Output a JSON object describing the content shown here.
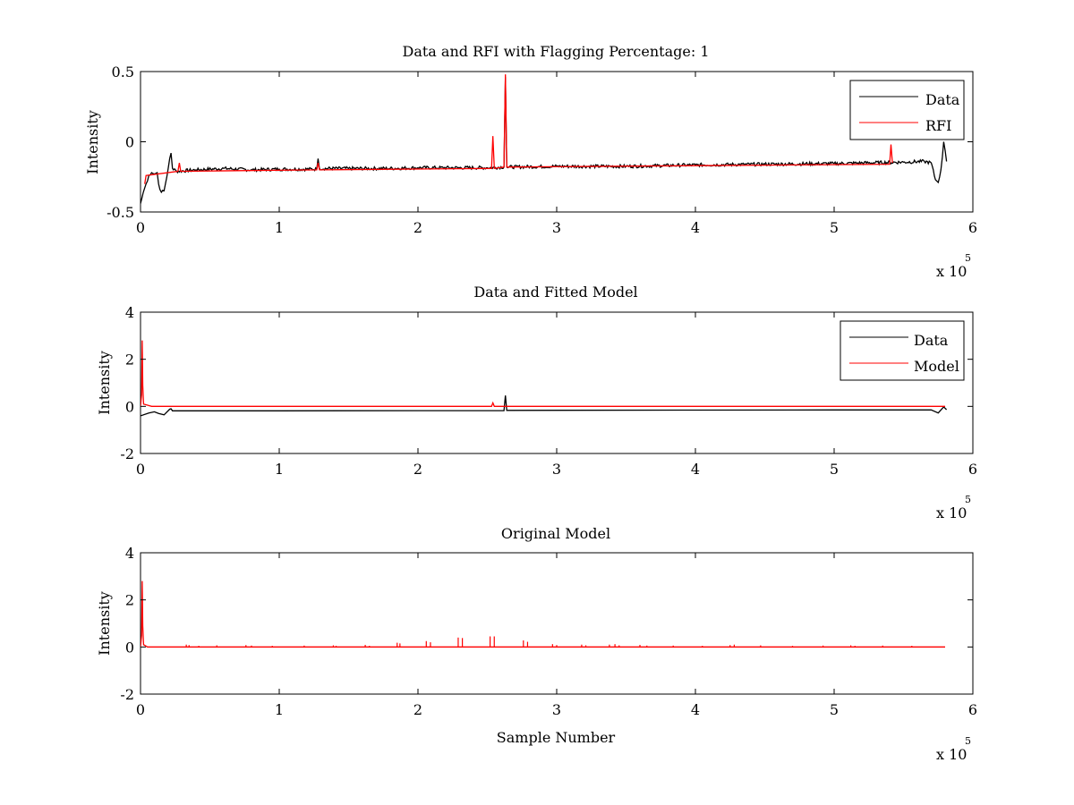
{
  "chart_data": [
    {
      "type": "line",
      "title": "Data and RFI with Flagging Percentage: 1",
      "xlabel": "",
      "ylabel": "Intensity",
      "xlim": [
        0,
        600000
      ],
      "ylim": [
        -0.5,
        0.5
      ],
      "x_ticks": [
        "0",
        "1",
        "2",
        "3",
        "4",
        "5",
        "6"
      ],
      "y_ticks": [
        "0.5",
        "0",
        "-0.5"
      ],
      "x_exponent_label": "x 10",
      "x_exponent_power": "5",
      "legend": {
        "position": "top-right",
        "entries": [
          "Data",
          "RFI"
        ]
      },
      "grid": false,
      "series": [
        {
          "name": "Data",
          "color": "#000000",
          "points": [
            [
              0,
              -0.44
            ],
            [
              2000,
              -0.36
            ],
            [
              4000,
              -0.3
            ],
            [
              6000,
              -0.24
            ],
            [
              8000,
              -0.22
            ],
            [
              10000,
              -0.23
            ],
            [
              12000,
              -0.22
            ],
            [
              13000,
              -0.3
            ],
            [
              15000,
              -0.36
            ],
            [
              17000,
              -0.35
            ],
            [
              19000,
              -0.25
            ],
            [
              21000,
              -0.12
            ],
            [
              22000,
              -0.08
            ],
            [
              23000,
              -0.19
            ],
            [
              26000,
              -0.21
            ],
            [
              40000,
              -0.2
            ],
            [
              60000,
              -0.19
            ],
            [
              80000,
              -0.2
            ],
            [
              100000,
              -0.195
            ],
            [
              127000,
              -0.195
            ],
            [
              128000,
              -0.12
            ],
            [
              129000,
              -0.19
            ],
            [
              150000,
              -0.19
            ],
            [
              180000,
              -0.19
            ],
            [
              200000,
              -0.185
            ],
            [
              230000,
              -0.185
            ],
            [
              250000,
              -0.185
            ],
            [
              262000,
              -0.18
            ],
            [
              263000,
              0.46
            ],
            [
              264000,
              -0.18
            ],
            [
              300000,
              -0.175
            ],
            [
              350000,
              -0.175
            ],
            [
              400000,
              -0.165
            ],
            [
              450000,
              -0.16
            ],
            [
              500000,
              -0.155
            ],
            [
              550000,
              -0.145
            ],
            [
              565000,
              -0.14
            ],
            [
              570000,
              -0.15
            ],
            [
              573000,
              -0.27
            ],
            [
              575000,
              -0.29
            ],
            [
              577000,
              -0.2
            ],
            [
              579000,
              0.0
            ],
            [
              581000,
              -0.14
            ]
          ],
          "noise": 0.012
        },
        {
          "name": "RFI",
          "color": "#ff0000",
          "points": [
            [
              3000,
              -0.3
            ],
            [
              4000,
              -0.24
            ],
            [
              27000,
              -0.21
            ],
            [
              28000,
              -0.15
            ],
            [
              29000,
              -0.21
            ],
            [
              127000,
              -0.2
            ],
            [
              128000,
              -0.15
            ],
            [
              129000,
              -0.2
            ],
            [
              253000,
              -0.19
            ],
            [
              254000,
              0.04
            ],
            [
              255000,
              -0.19
            ],
            [
              262000,
              -0.18
            ],
            [
              263000,
              0.48
            ],
            [
              264000,
              -0.18
            ],
            [
              540000,
              -0.16
            ],
            [
              541000,
              -0.02
            ],
            [
              542000,
              -0.15
            ]
          ]
        }
      ]
    },
    {
      "type": "line",
      "title": "Data and Fitted Model",
      "xlabel": "",
      "ylabel": "Intensity",
      "xlim": [
        0,
        600000
      ],
      "ylim": [
        -2,
        4
      ],
      "x_ticks": [
        "0",
        "1",
        "2",
        "3",
        "4",
        "5",
        "6"
      ],
      "y_ticks": [
        "4",
        "2",
        "0",
        "-2"
      ],
      "x_exponent_label": "x 10",
      "x_exponent_power": "5",
      "legend": {
        "position": "top-right",
        "entries": [
          "Data",
          "Model"
        ]
      },
      "grid": false,
      "series": [
        {
          "name": "Data",
          "color": "#000000",
          "points": [
            [
              0,
              -0.4
            ],
            [
              6000,
              -0.28
            ],
            [
              10000,
              -0.23
            ],
            [
              13000,
              -0.3
            ],
            [
              17000,
              -0.36
            ],
            [
              21000,
              -0.12
            ],
            [
              22000,
              -0.1
            ],
            [
              23000,
              -0.19
            ],
            [
              100000,
              -0.19
            ],
            [
              200000,
              -0.18
            ],
            [
              262000,
              -0.18
            ],
            [
              263000,
              0.46
            ],
            [
              264000,
              -0.17
            ],
            [
              400000,
              -0.16
            ],
            [
              500000,
              -0.15
            ],
            [
              570000,
              -0.15
            ],
            [
              575000,
              -0.28
            ],
            [
              579000,
              -0.02
            ],
            [
              581000,
              -0.14
            ]
          ]
        },
        {
          "name": "Model",
          "color": "#ff0000",
          "points": [
            [
              0,
              0
            ],
            [
              800,
              0.5
            ],
            [
              1200,
              2.8
            ],
            [
              1600,
              0.9
            ],
            [
              2200,
              0.1
            ],
            [
              5000,
              0.05
            ],
            [
              8000,
              0
            ],
            [
              253000,
              0
            ],
            [
              254000,
              0.15
            ],
            [
              255000,
              0
            ],
            [
              580000,
              0
            ]
          ]
        }
      ]
    },
    {
      "type": "line",
      "title": "Original Model",
      "xlabel": "Sample Number",
      "ylabel": "Intensity",
      "xlim": [
        0,
        600000
      ],
      "ylim": [
        -2,
        4
      ],
      "x_ticks": [
        "0",
        "1",
        "2",
        "3",
        "4",
        "5",
        "6"
      ],
      "y_ticks": [
        "4",
        "2",
        "0",
        "-2"
      ],
      "x_exponent_label": "x 10",
      "x_exponent_power": "5",
      "legend": null,
      "grid": false,
      "series": [
        {
          "name": "",
          "color": "#ff0000",
          "points": [
            [
              0,
              0
            ],
            [
              800,
              0.5
            ],
            [
              1200,
              2.8
            ],
            [
              1600,
              0.9
            ],
            [
              2200,
              0.1
            ],
            [
              5000,
              0
            ],
            [
              580000,
              0
            ]
          ],
          "spikes": [
            [
              33000,
              0.1
            ],
            [
              35000,
              0.08
            ],
            [
              42000,
              0.05
            ],
            [
              55000,
              0.07
            ],
            [
              76000,
              0.08
            ],
            [
              80000,
              0.06
            ],
            [
              95000,
              0.05
            ],
            [
              118000,
              0.06
            ],
            [
              139000,
              0.07
            ],
            [
              141000,
              0.05
            ],
            [
              162000,
              0.09
            ],
            [
              165000,
              0.05
            ],
            [
              185000,
              0.18
            ],
            [
              187000,
              0.15
            ],
            [
              206000,
              0.25
            ],
            [
              209000,
              0.2
            ],
            [
              229000,
              0.4
            ],
            [
              232000,
              0.38
            ],
            [
              252000,
              0.45
            ],
            [
              255000,
              0.45
            ],
            [
              276000,
              0.28
            ],
            [
              279000,
              0.22
            ],
            [
              297000,
              0.12
            ],
            [
              300000,
              0.08
            ],
            [
              318000,
              0.1
            ],
            [
              321000,
              0.07
            ],
            [
              338000,
              0.1
            ],
            [
              342000,
              0.12
            ],
            [
              345000,
              0.07
            ],
            [
              360000,
              0.09
            ],
            [
              365000,
              0.06
            ],
            [
              384000,
              0.06
            ],
            [
              405000,
              0.05
            ],
            [
              425000,
              0.08
            ],
            [
              428000,
              0.1
            ],
            [
              447000,
              0.07
            ],
            [
              470000,
              0.05
            ],
            [
              492000,
              0.06
            ],
            [
              512000,
              0.07
            ],
            [
              515000,
              0.05
            ],
            [
              535000,
              0.06
            ],
            [
              556000,
              0.05
            ]
          ]
        }
      ]
    }
  ]
}
